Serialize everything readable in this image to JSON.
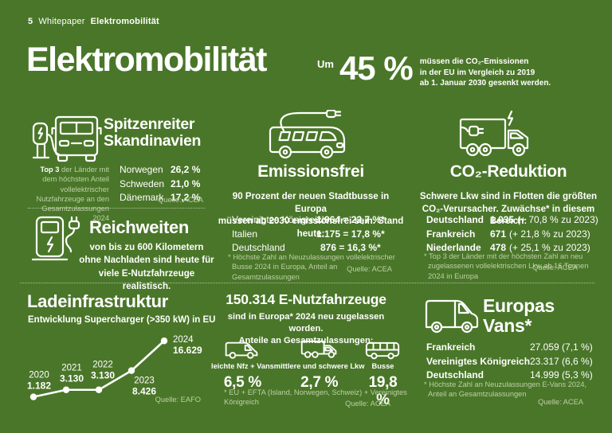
{
  "colors": {
    "background": "#4a7629",
    "text": "#ffffff",
    "muted": "#bdd0a5"
  },
  "header": {
    "page_number": "5",
    "doc_type": "Whitepaper",
    "doc_title": "Elektromobilität"
  },
  "title": "Elektromobilität",
  "co2_target": {
    "prefix": "Um",
    "value": "45 %",
    "line1": "müssen die CO₂-Emissionen",
    "line2": "in der EU im Vergleich zu 2019",
    "line3": "ab 1. Januar 2030 gesenkt werden."
  },
  "spitzenreiter": {
    "title_line1": "Spitzenreiter",
    "title_line2": "Skandinavien",
    "note_bold": "Top 3",
    "note_rest": " der Länder mit dem höchsten Anteil vollelektrischer Nutzfahrzeuge an den Gesamtzulassungen 2024",
    "entries": [
      {
        "label": "Norwegen",
        "value": "26,2 %"
      },
      {
        "label": "Schweden",
        "value": "21,0 %"
      },
      {
        "label": "Dänemark",
        "value": "17,2 %"
      }
    ],
    "source": "Quelle: ACEA"
  },
  "reichweiten": {
    "title": "Reichweiten",
    "line1": "von bis zu 600 Kilometern",
    "line2": "ohne Nachladen sind heute für",
    "line3": "viele E-Nutzfahrzeuge realistisch."
  },
  "emissionsfrei": {
    "title": "Emissionsfrei",
    "line1": "90 Prozent der neuen Stadtbusse in Europa",
    "line2": "müssen ab 2030 emissionsfrei sein. Stand heute:",
    "entries": [
      {
        "label": "Vereinigtes Königreich",
        "value": "1.964 = 22,7 %*"
      },
      {
        "label": "Italien",
        "value": "1.175 = 17,8 %*"
      },
      {
        "label": "Deutschland",
        "value": "876 = 16,3 %*"
      }
    ],
    "footnote_line1": "* Höchste Zahl an Neuzulassungen vollelektrischer",
    "footnote_line2": "Busse 2024 in Europa, Anteil an Gesamtzulassungen",
    "source": "Quelle: ACEA"
  },
  "co2_reduktion": {
    "title": "CO₂-Reduktion",
    "line1": "Schwere Lkw sind in Flotten die größten",
    "line2": "CO₂-Verursacher. Zuwächse* in diesem Bereich:",
    "entries": [
      {
        "label": "Deutschland",
        "count": "1.035",
        "note": "(+ 70,8 % zu 2023)"
      },
      {
        "label": "Frankreich",
        "count": "671",
        "note": "(+ 21,8 % zu 2023)"
      },
      {
        "label": "Niederlande",
        "count": "478",
        "note": "(+ 25,1 % zu 2023)"
      }
    ],
    "footnote_line1": "* Top 3 der Länder mit der höchsten Zahl an neu",
    "footnote_line2": "zugelassenen vollelektrischen Lkw ab 16 Tonnen",
    "footnote_line3": "2024 in Europa",
    "source": "Quelle: ACEA"
  },
  "ladeinfrastruktur": {
    "title": "Ladeinfrastruktur",
    "subtitle": "Entwicklung Supercharger (>350 kW) in EU",
    "source": "Quelle: EAFO"
  },
  "chart_data": {
    "type": "line",
    "title": "Ladeinfrastruktur",
    "subtitle": "Entwicklung Supercharger (>350 kW) in EU",
    "x": [
      "2020",
      "2021",
      "2022",
      "2023",
      "2024"
    ],
    "values": [
      1182,
      3130,
      3130,
      8426,
      16629
    ],
    "value_labels": [
      "1.182",
      "3.130",
      "3.130",
      "8.426",
      "16.629"
    ],
    "ylim": [
      0,
      18000
    ],
    "grid": false,
    "source": "Quelle: EAFO"
  },
  "nutzfahrzeuge": {
    "title": "150.314 E-Nutzfahrzeuge",
    "line1": "sind in Europa* 2024 neu zugelassen worden.",
    "line2": "Anteile an Gesamtzulassungen:",
    "categories": [
      {
        "label": "leichte Nfz + Vans",
        "value": "6,5 %",
        "icon": "van-icon"
      },
      {
        "label": "mittlere und schwere Lkw",
        "value": "2,7 %",
        "icon": "truck-icon"
      },
      {
        "label": "Busse",
        "value": "19,8 %",
        "icon": "bus-icon"
      }
    ],
    "footnote": "* EU + EFTA (Island, Norwegen, Schweiz) + Vereinigtes Königreich",
    "source": "Quelle: ACEA"
  },
  "europas_vans": {
    "title_line1": "Europas",
    "title_line2": "Vans*",
    "entries": [
      {
        "label": "Frankreich",
        "value": "27.059 (7,1 %)"
      },
      {
        "label": "Vereinigtes Königreich",
        "value": "23.317 (6,6 %)"
      },
      {
        "label": "Deutschland",
        "value": "14.999 (5,3 %)"
      }
    ],
    "footnote_line1": "* Höchste Zahl an Neuzulassungen E-Vans 2024,",
    "footnote_line2": "Anteil an Gesamtzulassungen",
    "source": "Quelle: ACEA"
  }
}
